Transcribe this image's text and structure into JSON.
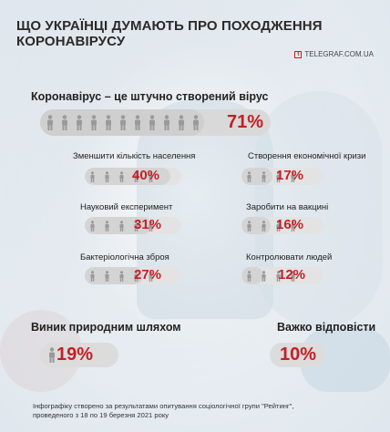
{
  "header": {
    "title": "ЩО УКРАЇНЦІ ДУМАЮТЬ ПРО ПОХОДЖЕННЯ КОРОНАВІРУСУ",
    "brand": "TELEGRAF.COM.UA"
  },
  "main": {
    "label": "Коронавірус – це штучно створений вірус",
    "pct": "71%"
  },
  "sub_items": [
    {
      "label": "Зменшити кількість населення",
      "pct": "40%"
    },
    {
      "label": "Створення економічної кризи",
      "pct": "17%"
    },
    {
      "label": "Науковий експеримент",
      "pct": "31%"
    },
    {
      "label": "Заробити на вакцині",
      "pct": "16%"
    },
    {
      "label": "Бактеріологічна зброя",
      "pct": "27%"
    },
    {
      "label": "Контролювати людей",
      "pct": "12%"
    }
  ],
  "natural": {
    "label": "Виник природним шляхом",
    "pct": "19%"
  },
  "hard": {
    "label": "Важко відповісти",
    "pct": "10%"
  },
  "footnote": {
    "line1": "Інфографіку створено за результатами опитування соціологічної групи \"Рейтинг\",",
    "line2": "проведеного з 18 по 19 березня 2021 року"
  },
  "colors": {
    "accent": "#c61e25",
    "bar": "#d9d9d9",
    "icon": "#9a9a9a"
  },
  "chart_data": {
    "type": "bar",
    "title": "ЩО УКРАЇНЦІ ДУМАЮТЬ ПРО ПОХОДЖЕННЯ КОРОНАВІРУСУ",
    "categories": [
      "Коронавірус – це штучно створений вірус",
      "Зменшити кількість населення",
      "Створення економічної кризи",
      "Науковий експеримент",
      "Заробити на вакцині",
      "Бактеріологічна зброя",
      "Контролювати людей",
      "Виник природним шляхом",
      "Важко відповісти"
    ],
    "values": [
      71,
      40,
      17,
      31,
      16,
      27,
      12,
      19,
      10
    ],
    "unit": "%"
  }
}
